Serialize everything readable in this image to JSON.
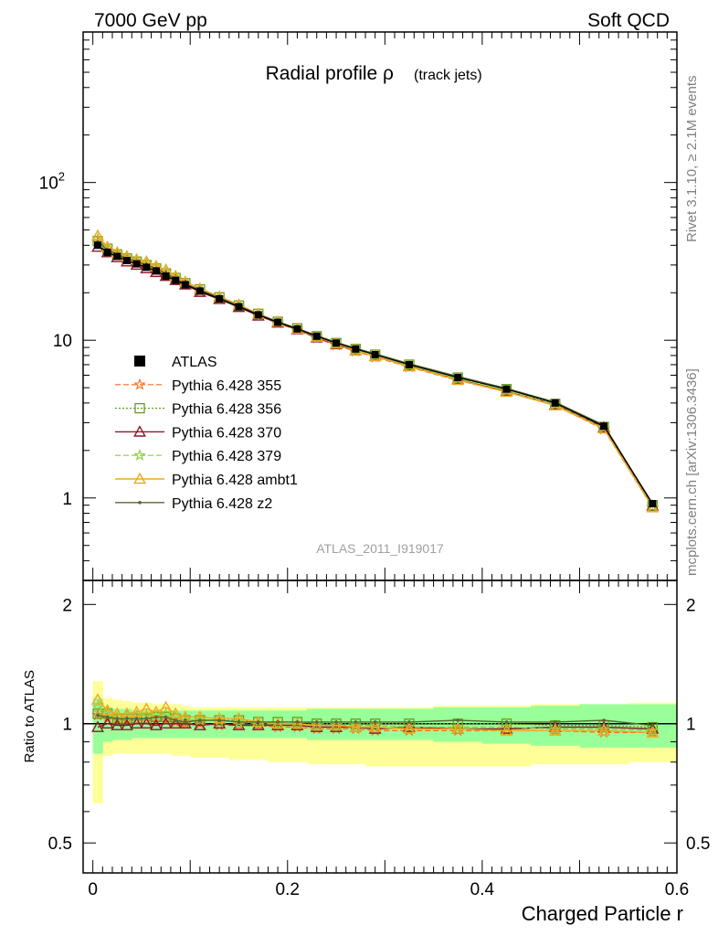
{
  "header": {
    "energy_label": "7000 GeV pp",
    "process_label": "Soft QCD"
  },
  "side_labels": {
    "rivet": "Rivet 3.1.10, ≥ 2.1M events",
    "mcplots": "mcplots.cern.ch [arXiv:1306.3436]"
  },
  "colors": {
    "data": "#000000",
    "p355": "#ff6a1a",
    "p356": "#6b9a1e",
    "p370": "#8b1a2a",
    "p379": "#8ccd3c",
    "ambt1": "#f0a820",
    "z2": "#556b2f",
    "band_inner": "#99ff99",
    "band_outer": "#ffff99"
  },
  "chart_data": [
    {
      "type": "line",
      "title": "Radial profile ρ",
      "subtitle": "(track jets)",
      "watermark": "ATLAS_2011_I919017",
      "xlabel": "Charged Particle r",
      "ylabel": "",
      "log_y": true,
      "xlim": [
        -0.01,
        0.6
      ],
      "ylim": [
        0.3,
        900
      ],
      "y_ticks": [
        {
          "value": 1,
          "label": "1"
        },
        {
          "value": 10,
          "label": "10"
        },
        {
          "value": 100,
          "label": "10²"
        }
      ],
      "x_ticks": [
        {
          "value": 0,
          "label": "0"
        },
        {
          "value": 0.2,
          "label": "0.2"
        },
        {
          "value": 0.4,
          "label": "0.4"
        },
        {
          "value": 0.6,
          "label": "0.6"
        }
      ],
      "legend_position": "middle-left",
      "x": [
        0.005,
        0.015,
        0.025,
        0.035,
        0.045,
        0.055,
        0.065,
        0.075,
        0.085,
        0.095,
        0.11,
        0.13,
        0.15,
        0.17,
        0.19,
        0.21,
        0.23,
        0.25,
        0.27,
        0.29,
        0.325,
        0.375,
        0.425,
        0.475,
        0.525,
        0.575
      ],
      "series": [
        {
          "name": "ATLAS",
          "marker": "square",
          "values": [
            40,
            36,
            34,
            32,
            30.5,
            29,
            27.5,
            25.5,
            24,
            22.5,
            20.5,
            18.3,
            16.3,
            14.5,
            13,
            11.8,
            10.6,
            9.6,
            8.8,
            8.1,
            7.0,
            5.8,
            4.9,
            4.0,
            2.85,
            0.92
          ]
        },
        {
          "name": "Pythia 6.428 355",
          "marker": "star",
          "values": [
            42,
            37,
            34.5,
            32.5,
            31,
            29.5,
            27.8,
            26,
            24.3,
            22.5,
            20.5,
            18.2,
            16.2,
            14.3,
            12.8,
            11.6,
            10.3,
            9.3,
            8.5,
            7.8,
            6.75,
            5.55,
            4.7,
            3.85,
            2.72,
            0.87
          ]
        },
        {
          "name": "Pythia 6.428 356",
          "marker": "square-open",
          "values": [
            42.5,
            38,
            35,
            33,
            31.5,
            30,
            28.5,
            26.5,
            24.8,
            23,
            21,
            18.7,
            16.6,
            14.7,
            13.1,
            11.9,
            10.6,
            9.6,
            8.8,
            8.1,
            7.0,
            5.8,
            4.9,
            3.95,
            2.82,
            0.9
          ]
        },
        {
          "name": "Pythia 6.428 370",
          "marker": "triangle",
          "values": [
            39,
            36,
            33.5,
            31.5,
            30,
            28.5,
            27,
            25.5,
            24,
            22.5,
            20.2,
            18.2,
            16.2,
            14.3,
            12.9,
            11.7,
            10.4,
            9.4,
            8.6,
            7.9,
            6.85,
            5.65,
            4.75,
            3.9,
            2.8,
            0.89
          ]
        },
        {
          "name": "Pythia 6.428 379",
          "marker": "star",
          "values": [
            44,
            38.5,
            35.5,
            33.5,
            32,
            30.5,
            29,
            27,
            25,
            23.2,
            21,
            18.6,
            16.5,
            14.6,
            13,
            11.8,
            10.5,
            9.5,
            8.7,
            8.0,
            6.9,
            5.7,
            4.8,
            3.9,
            2.78,
            0.88
          ]
        },
        {
          "name": "Pythia 6.428 ambt1",
          "marker": "triangle",
          "values": [
            46,
            39,
            36,
            34,
            32.5,
            31.5,
            29.5,
            28,
            25.5,
            23.5,
            21.3,
            18.9,
            16.8,
            14.7,
            13.1,
            11.8,
            10.5,
            9.5,
            8.6,
            7.9,
            6.8,
            5.6,
            4.7,
            3.85,
            2.75,
            0.87
          ]
        },
        {
          "name": "Pythia 6.428 z2",
          "marker": "dot",
          "values": [
            42,
            37.5,
            35,
            33,
            31.5,
            30,
            28.5,
            26.5,
            24.5,
            22.8,
            20.8,
            18.6,
            16.5,
            14.6,
            13.1,
            11.9,
            10.7,
            9.7,
            8.9,
            8.2,
            7.1,
            5.9,
            4.95,
            4.05,
            2.9,
            0.91
          ]
        }
      ]
    },
    {
      "type": "line",
      "title": "",
      "ylabel": "Ratio to ATLAS",
      "xlabel": "Charged Particle r",
      "log_y": true,
      "xlim": [
        -0.01,
        0.6
      ],
      "ylim": [
        0.42,
        2.3
      ],
      "y_ticks": [
        {
          "value": 0.5,
          "label": "0.5"
        },
        {
          "value": 1,
          "label": "1"
        },
        {
          "value": 2,
          "label": "2"
        }
      ],
      "x": [
        0.005,
        0.015,
        0.025,
        0.035,
        0.045,
        0.055,
        0.065,
        0.075,
        0.085,
        0.095,
        0.11,
        0.13,
        0.15,
        0.17,
        0.19,
        0.21,
        0.23,
        0.25,
        0.27,
        0.29,
        0.325,
        0.375,
        0.425,
        0.475,
        0.525,
        0.575
      ],
      "bin_edges": [
        0,
        0.01,
        0.02,
        0.03,
        0.04,
        0.05,
        0.06,
        0.07,
        0.08,
        0.09,
        0.1,
        0.12,
        0.14,
        0.16,
        0.18,
        0.2,
        0.22,
        0.24,
        0.26,
        0.28,
        0.3,
        0.35,
        0.4,
        0.45,
        0.5,
        0.55,
        0.6
      ],
      "band_inner": {
        "low": [
          0.84,
          0.9,
          0.91,
          0.91,
          0.92,
          0.92,
          0.92,
          0.92,
          0.92,
          0.92,
          0.92,
          0.92,
          0.92,
          0.92,
          0.92,
          0.92,
          0.91,
          0.91,
          0.91,
          0.91,
          0.91,
          0.9,
          0.89,
          0.88,
          0.87,
          0.87
        ],
        "high": [
          1.16,
          1.1,
          1.09,
          1.09,
          1.08,
          1.08,
          1.08,
          1.08,
          1.08,
          1.08,
          1.08,
          1.08,
          1.08,
          1.08,
          1.08,
          1.08,
          1.09,
          1.09,
          1.09,
          1.09,
          1.09,
          1.1,
          1.1,
          1.11,
          1.12,
          1.12
        ]
      },
      "band_outer": {
        "low": [
          0.63,
          0.83,
          0.84,
          0.84,
          0.84,
          0.84,
          0.84,
          0.84,
          0.83,
          0.83,
          0.82,
          0.82,
          0.81,
          0.81,
          0.8,
          0.8,
          0.79,
          0.79,
          0.79,
          0.78,
          0.78,
          0.78,
          0.78,
          0.79,
          0.79,
          0.8
        ],
        "high": [
          1.28,
          1.16,
          1.15,
          1.14,
          1.13,
          1.13,
          1.12,
          1.12,
          1.12,
          1.11,
          1.1,
          1.1,
          1.1,
          1.1,
          1.1,
          1.1,
          1.1,
          1.1,
          1.1,
          1.1,
          1.1,
          1.11,
          1.11,
          1.12,
          1.12,
          1.13
        ]
      },
      "series": [
        {
          "name": "Pythia 6.428 355",
          "marker": "star",
          "values": [
            1.05,
            1.03,
            1.02,
            1.02,
            1.02,
            1.02,
            1.01,
            1.02,
            1.01,
            1.0,
            1.0,
            0.99,
            0.99,
            0.99,
            0.98,
            0.98,
            0.97,
            0.97,
            0.97,
            0.96,
            0.96,
            0.96,
            0.96,
            0.96,
            0.95,
            0.95
          ]
        },
        {
          "name": "Pythia 6.428 356",
          "marker": "square-open",
          "values": [
            1.06,
            1.06,
            1.03,
            1.03,
            1.03,
            1.03,
            1.04,
            1.04,
            1.03,
            1.02,
            1.02,
            1.02,
            1.02,
            1.01,
            1.01,
            1.01,
            1.0,
            1.0,
            1.0,
            1.0,
            1.0,
            1.0,
            1.0,
            0.99,
            0.99,
            0.98
          ]
        },
        {
          "name": "Pythia 6.428 370",
          "marker": "triangle",
          "values": [
            0.98,
            1.0,
            0.99,
            0.99,
            1.0,
            1.0,
            0.99,
            1.0,
            1.0,
            1.0,
            0.99,
            1.0,
            0.99,
            0.99,
            0.99,
            0.99,
            0.98,
            0.98,
            0.98,
            0.97,
            0.98,
            0.97,
            0.97,
            0.98,
            0.98,
            0.97
          ]
        },
        {
          "name": "Pythia 6.428 379",
          "marker": "star",
          "values": [
            1.1,
            1.07,
            1.04,
            1.05,
            1.05,
            1.05,
            1.05,
            1.06,
            1.04,
            1.03,
            1.02,
            1.02,
            1.01,
            1.0,
            1.0,
            1.0,
            0.99,
            0.99,
            0.99,
            0.99,
            0.98,
            0.98,
            0.98,
            0.97,
            0.97,
            0.96
          ]
        },
        {
          "name": "Pythia 6.428 ambt1",
          "marker": "triangle",
          "values": [
            1.15,
            1.08,
            1.06,
            1.06,
            1.07,
            1.09,
            1.07,
            1.1,
            1.06,
            1.04,
            1.04,
            1.03,
            1.03,
            1.01,
            1.0,
            1.0,
            0.99,
            0.99,
            0.98,
            0.98,
            0.97,
            0.97,
            0.96,
            0.96,
            0.96,
            0.95
          ]
        },
        {
          "name": "Pythia 6.428 z2",
          "marker": "dot",
          "values": [
            1.05,
            1.04,
            1.03,
            1.03,
            1.03,
            1.03,
            1.04,
            1.04,
            1.02,
            1.01,
            1.02,
            1.02,
            1.01,
            1.01,
            1.01,
            1.01,
            1.01,
            1.01,
            1.01,
            1.01,
            1.01,
            1.02,
            1.01,
            1.01,
            1.02,
            0.99
          ]
        }
      ]
    }
  ]
}
